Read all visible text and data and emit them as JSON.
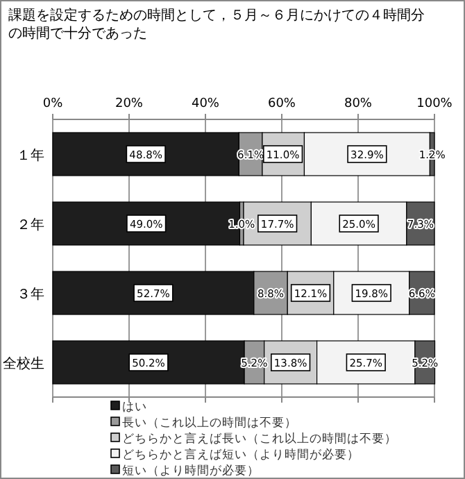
{
  "chart_data": {
    "type": "bar",
    "orientation": "horizontal",
    "stacked": true,
    "title": "課題を設定するための時間として，５月～６月にかけての４時間分の時間で十分であった",
    "categories": [
      "１年",
      "２年",
      "３年",
      "全校生"
    ],
    "series": [
      {
        "name": "はい",
        "color": "#1e1e1e",
        "values": [
          48.8,
          49.0,
          52.7,
          50.2
        ],
        "value_labels": [
          "48.8%",
          "49.0%",
          "52.7%",
          "50.2%"
        ]
      },
      {
        "name": "長い（これ以上の時間は不要）",
        "color": "#9a9a9a",
        "values": [
          6.1,
          1.0,
          8.8,
          5.2
        ],
        "value_labels": [
          "6.1%",
          "1.0%",
          "8.8%",
          "5.2%"
        ]
      },
      {
        "name": "どちらかと言えば長い（これ以上の時間は不要）",
        "color": "#cfcfcf",
        "values": [
          11.0,
          17.7,
          12.1,
          13.8
        ],
        "value_labels": [
          "11.0%",
          "17.7%",
          "12.1%",
          "13.8%"
        ]
      },
      {
        "name": "どちらかと言えば短い（より時間が必要）",
        "color": "#f3f3f3",
        "values": [
          32.9,
          25.0,
          19.8,
          25.7
        ],
        "value_labels": [
          "32.9%",
          "25.0%",
          "19.8%",
          "25.7%"
        ]
      },
      {
        "name": "短い（より時間が必要）",
        "color": "#5a5a5a",
        "values": [
          1.2,
          7.3,
          6.6,
          5.2
        ],
        "value_labels": [
          "1.2%",
          "7.3%",
          "6.6%",
          "5.2%"
        ]
      }
    ],
    "xlim": [
      0,
      100
    ],
    "xticks": [
      {
        "value": 0,
        "label": "0%"
      },
      {
        "value": 20,
        "label": "20%"
      },
      {
        "value": 40,
        "label": "40%"
      },
      {
        "value": 60,
        "label": "60%"
      },
      {
        "value": 80,
        "label": "80%"
      },
      {
        "value": 100,
        "label": "100%"
      }
    ],
    "grid": "x",
    "legend": "bottom"
  }
}
